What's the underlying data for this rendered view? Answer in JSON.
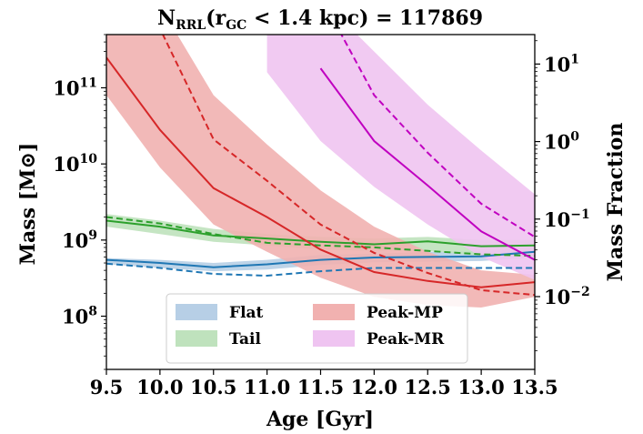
{
  "chart_data": {
    "type": "line",
    "title": "N_RRL(r_GC < 1.4 kpc) = 117869",
    "title_parts": {
      "base": "N",
      "sub": "RRL",
      "open": "(r",
      "sub2": "GC",
      "rest": " < 1.4 kpc) = 117869"
    },
    "xlabel": "Age [Gyr]",
    "ylabel": "Mass [M⊙]",
    "ylabel_right": "Mass Fraction",
    "xlim": [
      9.5,
      13.5
    ],
    "ylim": [
      20000000.0,
      500000000000.0
    ],
    "ylim_right": [
      0.00115,
      24.0
    ],
    "yscale": "log",
    "x_ticks": [
      "9.5",
      "10.0",
      "10.5",
      "11.0",
      "11.5",
      "12.0",
      "12.5",
      "13.0",
      "13.5"
    ],
    "y_ticks": [
      {
        "value": 100000000.0,
        "base": "10",
        "exp": "8"
      },
      {
        "value": 1000000000.0,
        "base": "10",
        "exp": "9"
      },
      {
        "value": 10000000000.0,
        "base": "10",
        "exp": "10"
      },
      {
        "value": 100000000000.0,
        "base": "10",
        "exp": "11"
      }
    ],
    "y_ticks_right": [
      {
        "value": 0.01,
        "base": "10",
        "exp": "−2"
      },
      {
        "value": 0.1,
        "base": "10",
        "exp": "−1"
      },
      {
        "value": 1,
        "base": "10",
        "exp": "0"
      },
      {
        "value": 10,
        "base": "10",
        "exp": "1"
      }
    ],
    "legend_position": "bottom-center",
    "series": [
      {
        "name": "Flat",
        "color": "#1f77b4",
        "fill": "#b7cfe6",
        "x": [
          9.5,
          10.0,
          10.5,
          11.0,
          11.5,
          12.0,
          12.5,
          13.0,
          13.5
        ],
        "solid": [
          550000000.0,
          500000000.0,
          440000000.0,
          480000000.0,
          550000000.0,
          590000000.0,
          600000000.0,
          610000000.0,
          700000000.0
        ],
        "dashed": [
          490000000.0,
          430000000.0,
          360000000.0,
          340000000.0,
          390000000.0,
          430000000.0,
          430000000.0,
          430000000.0,
          430000000.0
        ],
        "band_upper": [
          580000000.0,
          550000000.0,
          500000000.0,
          550000000.0,
          640000000.0,
          660000000.0,
          700000000.0,
          720000000.0,
          750000000.0
        ],
        "band_lower": [
          480000000.0,
          430000000.0,
          390000000.0,
          410000000.0,
          470000000.0,
          510000000.0,
          520000000.0,
          530000000.0,
          590000000.0
        ]
      },
      {
        "name": "Tail",
        "color": "#2ca02c",
        "fill": "#bfe2bd",
        "x": [
          9.5,
          10.0,
          10.5,
          11.0,
          11.5,
          12.0,
          12.5,
          13.0,
          13.5
        ],
        "solid": [
          1800000000.0,
          1500000000.0,
          1150000000.0,
          1050000000.0,
          950000000.0,
          880000000.0,
          960000000.0,
          830000000.0,
          850000000.0
        ],
        "dashed": [
          2000000000.0,
          1650000000.0,
          1200000000.0,
          920000000.0,
          850000000.0,
          800000000.0,
          720000000.0,
          650000000.0,
          620000000.0
        ],
        "band_upper": [
          2200000000.0,
          1800000000.0,
          1400000000.0,
          1200000000.0,
          1100000000.0,
          1050000000.0,
          1100000000.0,
          1000000000.0,
          1000000000.0
        ],
        "band_lower": [
          1500000000.0,
          1200000000.0,
          950000000.0,
          850000000.0,
          750000000.0,
          720000000.0,
          720000000.0,
          620000000.0,
          600000000.0
        ]
      },
      {
        "name": "Peak-MP",
        "color": "#d62728",
        "fill": "#f1b1b0",
        "x": [
          9.5,
          10.0,
          10.5,
          11.0,
          11.5,
          12.0,
          12.5,
          13.0,
          13.5
        ],
        "solid": [
          250000000000.0,
          28000000000.0,
          4800000000.0,
          2000000000.0,
          750000000.0,
          380000000.0,
          290000000.0,
          240000000.0,
          280000000.0
        ],
        "dashed": [
          9000000000000.0,
          600000000000.0,
          21000000000.0,
          6000000000.0,
          1600000000.0,
          680000000.0,
          370000000.0,
          220000000.0,
          190000000.0
        ],
        "band_upper": [
          9000000000000.0,
          1200000000000.0,
          80000000000.0,
          18000000000.0,
          4500000000.0,
          1500000000.0,
          700000000.0,
          400000000.0,
          350000000.0
        ],
        "band_lower": [
          80000000000.0,
          9000000000.0,
          1600000000.0,
          700000000.0,
          320000000.0,
          180000000.0,
          140000000.0,
          130000000.0,
          180000000.0
        ]
      },
      {
        "name": "Peak-MR",
        "color": "#c000c0",
        "fill": "#efc4f1",
        "x": [
          11.5,
          12.0,
          12.5,
          13.0,
          13.5
        ],
        "solid": [
          180000000000.0,
          20000000000.0,
          5200000000.0,
          1300000000.0,
          550000000.0
        ],
        "dashed": [
          1600000000000.0,
          80000000000.0,
          14000000000.0,
          3000000000.0,
          1100000000.0
        ],
        "band_x": [
          11.0,
          11.5,
          12.0,
          12.5,
          13.0,
          13.5
        ],
        "band_upper": [
          9000000000000.0,
          1500000000000.0,
          300000000000.0,
          60000000000.0,
          15000000000.0,
          4000000000.0
        ],
        "band_lower": [
          160000000000.0,
          20000000000.0,
          5000000000.0,
          1600000000.0,
          600000000.0,
          300000000.0
        ]
      }
    ]
  }
}
